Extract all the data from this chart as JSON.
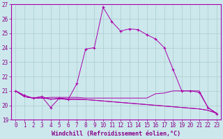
{
  "background_color": "#cce8ec",
  "grid_color": "#aacccc",
  "line_color": "#aa00aa",
  "marker_color": "#aa00aa",
  "xlabel": "Windchill (Refroidissement éolien,°C)",
  "xlabel_color": "#880088",
  "xlim": [
    -0.5,
    23.5
  ],
  "ylim": [
    19,
    27
  ],
  "yticks": [
    19,
    20,
    21,
    22,
    23,
    24,
    25,
    26,
    27
  ],
  "xticks": [
    0,
    1,
    2,
    3,
    4,
    5,
    6,
    7,
    8,
    9,
    10,
    11,
    12,
    13,
    14,
    15,
    16,
    17,
    18,
    19,
    20,
    21,
    22,
    23
  ],
  "series": [
    {
      "x": [
        0,
        1,
        2,
        3,
        4,
        5,
        6,
        7,
        8,
        9,
        10,
        11,
        12,
        13,
        14,
        15,
        16,
        17,
        18,
        19,
        20,
        21,
        22,
        23
      ],
      "y": [
        21.0,
        20.7,
        20.5,
        20.6,
        19.85,
        20.5,
        20.4,
        21.5,
        23.9,
        24.0,
        26.8,
        25.8,
        25.15,
        25.3,
        25.25,
        24.9,
        24.6,
        24.0,
        22.5,
        21.0,
        21.0,
        20.9,
        19.85,
        19.4
      ],
      "marker": true
    },
    {
      "x": [
        0,
        1,
        2,
        3,
        4,
        5,
        6,
        7,
        8,
        9,
        10,
        11,
        12,
        13,
        14,
        15,
        16,
        17,
        18,
        19,
        20,
        21,
        22,
        23
      ],
      "y": [
        21.0,
        20.6,
        20.5,
        20.5,
        20.45,
        20.45,
        20.4,
        20.4,
        20.4,
        20.35,
        20.3,
        20.25,
        20.2,
        20.15,
        20.1,
        20.05,
        20.0,
        19.95,
        19.9,
        19.85,
        19.8,
        19.75,
        19.65,
        19.45
      ],
      "marker": false
    },
    {
      "x": [
        0,
        1,
        2,
        3,
        4,
        5,
        6,
        7,
        8,
        9,
        10,
        11,
        12,
        13,
        14,
        15,
        16,
        17,
        18,
        19,
        20,
        21,
        22,
        23
      ],
      "y": [
        21.0,
        20.6,
        20.5,
        20.5,
        20.55,
        20.55,
        20.55,
        20.55,
        20.5,
        20.5,
        20.5,
        20.5,
        20.5,
        20.5,
        20.5,
        20.5,
        20.8,
        20.85,
        21.0,
        21.0,
        21.0,
        21.0,
        19.85,
        19.45
      ],
      "marker": false
    },
    {
      "x": [
        0,
        1,
        2,
        3,
        4,
        5,
        6,
        7,
        8,
        9,
        10,
        11,
        12,
        13,
        14,
        15,
        16,
        17,
        18,
        19,
        20,
        21,
        22,
        23
      ],
      "y": [
        21.0,
        20.6,
        20.5,
        20.6,
        20.4,
        20.5,
        20.45,
        20.45,
        20.4,
        20.35,
        20.3,
        20.25,
        20.2,
        20.15,
        20.1,
        20.05,
        20.0,
        19.95,
        19.9,
        19.85,
        19.8,
        19.75,
        19.65,
        19.45
      ],
      "marker": false
    }
  ],
  "tick_color": "#880088",
  "tick_fontsize": 5.5,
  "xlabel_fontsize": 6.0
}
